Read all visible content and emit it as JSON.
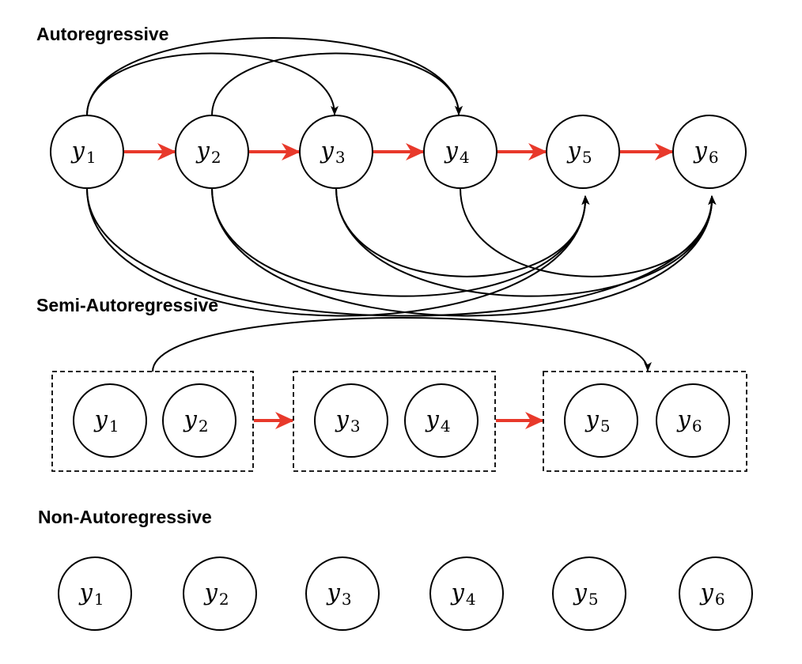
{
  "titles": {
    "autoregressive": "Autoregressive",
    "semi_autoregressive": "Semi-Autoregressive",
    "non_autoregressive": "Non-Autoregressive"
  },
  "node_var": "y",
  "node_indices": [
    "1",
    "2",
    "3",
    "4",
    "5",
    "6"
  ],
  "colors": {
    "sequential_edge": "#e8392b",
    "dependency_edge": "#000000",
    "node_stroke": "#000000"
  },
  "autoregressive": {
    "sequential_edges": [
      [
        1,
        2
      ],
      [
        2,
        3
      ],
      [
        3,
        4
      ],
      [
        4,
        5
      ],
      [
        5,
        6
      ]
    ],
    "dependency_edges_above": [
      [
        1,
        3
      ],
      [
        1,
        4
      ],
      [
        2,
        4
      ]
    ],
    "dependency_edges_below": [
      [
        1,
        5
      ],
      [
        1,
        6
      ],
      [
        2,
        5
      ],
      [
        2,
        6
      ],
      [
        3,
        5
      ],
      [
        3,
        6
      ],
      [
        4,
        6
      ]
    ]
  },
  "semi_autoregressive": {
    "groups": [
      [
        1,
        2
      ],
      [
        3,
        4
      ],
      [
        5,
        6
      ]
    ],
    "sequential_edges": [
      [
        1,
        2
      ],
      [
        2,
        3
      ]
    ],
    "dependency_edges": [
      [
        1,
        3
      ]
    ]
  },
  "non_autoregressive": {
    "nodes": [
      1,
      2,
      3,
      4,
      5,
      6
    ]
  }
}
